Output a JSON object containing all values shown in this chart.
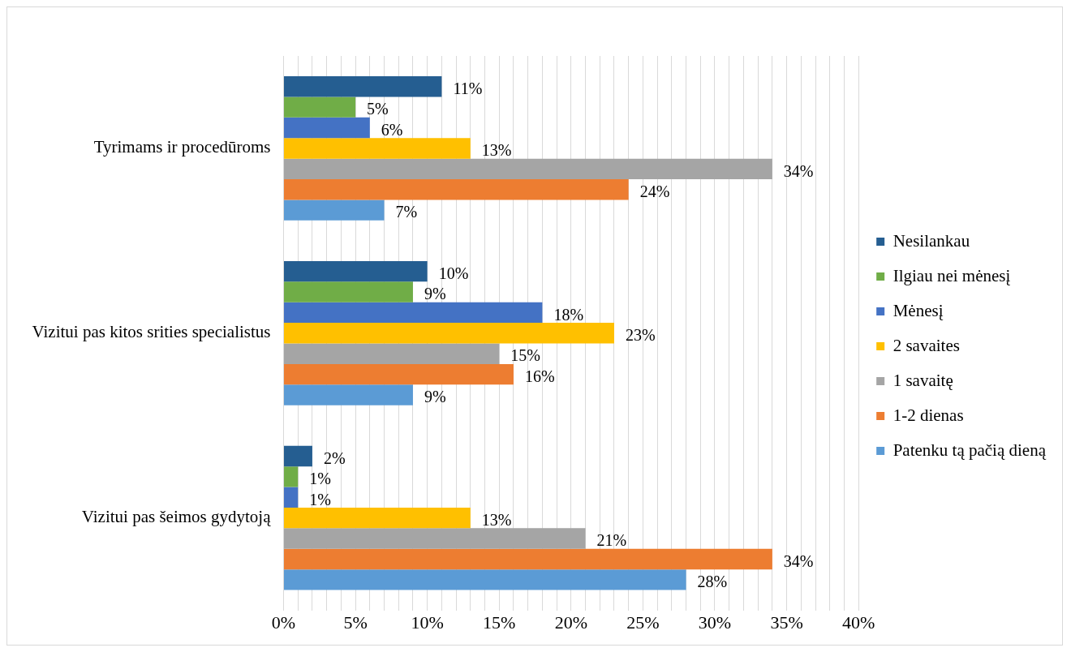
{
  "chart_data": {
    "type": "bar",
    "orientation": "horizontal",
    "categories": [
      "Tyrimams ir procedūroms",
      "Vizitui pas kitos srities specialistus",
      "Vizitui pas šeimos gydytoją"
    ],
    "series": [
      {
        "name": "Nesilankau",
        "color": "#255e91",
        "values": [
          11,
          10,
          2
        ],
        "value_labels": [
          "11%",
          "10%",
          "2%"
        ]
      },
      {
        "name": "Ilgiau nei mėnesį",
        "color": "#70ad47",
        "values": [
          5,
          9,
          1
        ],
        "value_labels": [
          "5%",
          "9%",
          "1%"
        ]
      },
      {
        "name": "Mėnesį",
        "color": "#4472c4",
        "values": [
          6,
          18,
          1
        ],
        "value_labels": [
          "6%",
          "18%",
          "1%"
        ]
      },
      {
        "name": "2 savaites",
        "color": "#ffc000",
        "values": [
          13,
          23,
          13
        ],
        "value_labels": [
          "13%",
          "23%",
          "13%"
        ]
      },
      {
        "name": "1 savaitę",
        "color": "#a5a5a5",
        "values": [
          34,
          15,
          21
        ],
        "value_labels": [
          "34%",
          "15%",
          "21%"
        ]
      },
      {
        "name": "1-2 dienas",
        "color": "#ed7d31",
        "values": [
          24,
          16,
          34
        ],
        "value_labels": [
          "24%",
          "16%",
          "34%"
        ]
      },
      {
        "name": "Patenku tą pačią dieną",
        "color": "#5b9bd5",
        "values": [
          7,
          9,
          28
        ],
        "value_labels": [
          "7%",
          "9%",
          "28%"
        ]
      }
    ],
    "xlim": [
      0,
      40
    ],
    "xticks": [
      {
        "value": 0,
        "label": "0%"
      },
      {
        "value": 1,
        "label": null
      },
      {
        "value": 2,
        "label": null
      },
      {
        "value": 3,
        "label": null
      },
      {
        "value": 4,
        "label": null
      },
      {
        "value": 5,
        "label": "5%"
      },
      {
        "value": 6,
        "label": null
      },
      {
        "value": 7,
        "label": null
      },
      {
        "value": 8,
        "label": null
      },
      {
        "value": 9,
        "label": null
      },
      {
        "value": 10,
        "label": "10%"
      },
      {
        "value": 11,
        "label": null
      },
      {
        "value": 12,
        "label": null
      },
      {
        "value": 13,
        "label": null
      },
      {
        "value": 14,
        "label": null
      },
      {
        "value": 15,
        "label": "15%"
      },
      {
        "value": 16,
        "label": null
      },
      {
        "value": 17,
        "label": null
      },
      {
        "value": 18,
        "label": null
      },
      {
        "value": 19,
        "label": null
      },
      {
        "value": 20,
        "label": "20%"
      },
      {
        "value": 21,
        "label": null
      },
      {
        "value": 22,
        "label": null
      },
      {
        "value": 23,
        "label": null
      },
      {
        "value": 24,
        "label": null
      },
      {
        "value": 25,
        "label": "25%"
      },
      {
        "value": 26,
        "label": null
      },
      {
        "value": 27,
        "label": null
      },
      {
        "value": 28,
        "label": null
      },
      {
        "value": 29,
        "label": null
      },
      {
        "value": 30,
        "label": "30%"
      },
      {
        "value": 31,
        "label": null
      },
      {
        "value": 32,
        "label": null
      },
      {
        "value": 33,
        "label": null
      },
      {
        "value": 34,
        "label": null
      },
      {
        "value": 35,
        "label": "35%"
      },
      {
        "value": 36,
        "label": null
      },
      {
        "value": 37,
        "label": null
      },
      {
        "value": 38,
        "label": null
      },
      {
        "value": 39,
        "label": null
      },
      {
        "value": 40,
        "label": "40%"
      }
    ],
    "grid": "x",
    "legend": "right"
  }
}
